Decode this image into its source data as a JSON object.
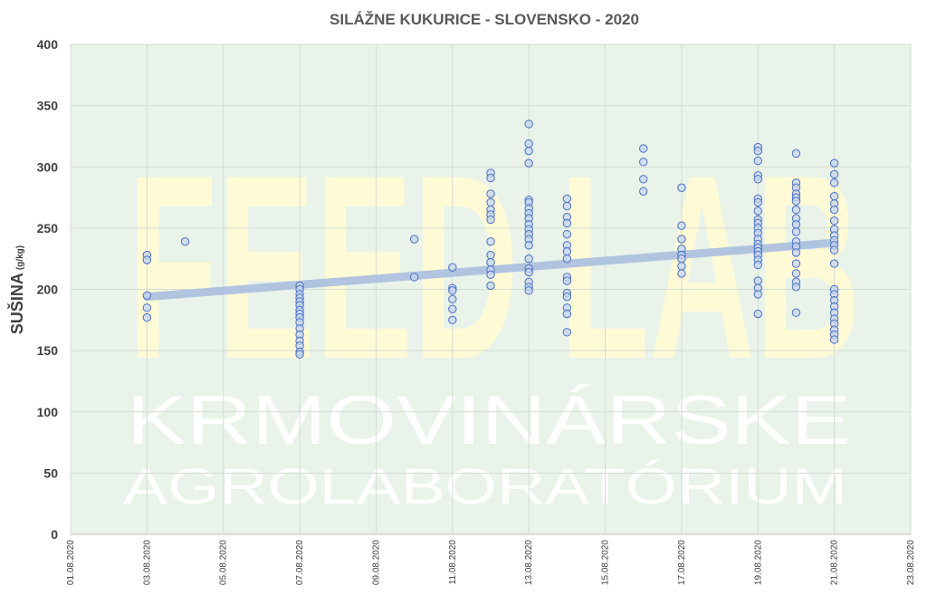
{
  "watermark": {
    "logo_text": "FEED LAB",
    "line1": "KRMOVINÁRSKE",
    "line2": "AGROLABORATÓRIUM"
  },
  "chart_data": {
    "type": "scatter",
    "title": "SILÁŽNE KUKURICE - SLOVENSKO - 2020",
    "ylabel": "SUŠINA",
    "ylabel_unit": "(g/kg)",
    "xlabel": "",
    "ylim": [
      0,
      400
    ],
    "yticks": [
      0,
      50,
      100,
      150,
      200,
      250,
      300,
      350,
      400
    ],
    "xlim": [
      "2020-08-01",
      "2020-08-23"
    ],
    "xtick_labels": [
      "01.08.2020",
      "03.08.2020",
      "05.08.2020",
      "07.08.2020",
      "09.08.2020",
      "11.08.2020",
      "13.08.2020",
      "15.08.2020",
      "17.08.2020",
      "19.08.2020",
      "21.08.2020",
      "23.08.2020"
    ],
    "grid": true,
    "colors": {
      "plot_background": "#e9f3e9",
      "marker_fill": "#c7d6f0",
      "marker_stroke": "#4a6fc0",
      "trendline": "#aabfe0",
      "grid": "#d4dcd4"
    },
    "trendline": {
      "x": [
        "2020-08-03",
        "2020-08-21"
      ],
      "y": [
        194,
        238
      ]
    },
    "points": [
      {
        "x": "2020-08-03",
        "y": 228
      },
      {
        "x": "2020-08-03",
        "y": 224
      },
      {
        "x": "2020-08-03",
        "y": 195
      },
      {
        "x": "2020-08-03",
        "y": 185
      },
      {
        "x": "2020-08-03",
        "y": 177
      },
      {
        "x": "2020-08-04",
        "y": 239
      },
      {
        "x": "2020-08-07",
        "y": 203
      },
      {
        "x": "2020-08-07",
        "y": 200
      },
      {
        "x": "2020-08-07",
        "y": 196
      },
      {
        "x": "2020-08-07",
        "y": 193
      },
      {
        "x": "2020-08-07",
        "y": 190
      },
      {
        "x": "2020-08-07",
        "y": 187
      },
      {
        "x": "2020-08-07",
        "y": 183
      },
      {
        "x": "2020-08-07",
        "y": 180
      },
      {
        "x": "2020-08-07",
        "y": 177
      },
      {
        "x": "2020-08-07",
        "y": 173
      },
      {
        "x": "2020-08-07",
        "y": 168
      },
      {
        "x": "2020-08-07",
        "y": 163
      },
      {
        "x": "2020-08-07",
        "y": 158
      },
      {
        "x": "2020-08-07",
        "y": 154
      },
      {
        "x": "2020-08-07",
        "y": 149
      },
      {
        "x": "2020-08-07",
        "y": 147
      },
      {
        "x": "2020-08-10",
        "y": 241
      },
      {
        "x": "2020-08-10",
        "y": 210
      },
      {
        "x": "2020-08-11",
        "y": 218
      },
      {
        "x": "2020-08-11",
        "y": 201
      },
      {
        "x": "2020-08-11",
        "y": 199
      },
      {
        "x": "2020-08-11",
        "y": 192
      },
      {
        "x": "2020-08-11",
        "y": 184
      },
      {
        "x": "2020-08-11",
        "y": 175
      },
      {
        "x": "2020-08-12",
        "y": 295
      },
      {
        "x": "2020-08-12",
        "y": 291
      },
      {
        "x": "2020-08-12",
        "y": 278
      },
      {
        "x": "2020-08-12",
        "y": 271
      },
      {
        "x": "2020-08-12",
        "y": 265
      },
      {
        "x": "2020-08-12",
        "y": 261
      },
      {
        "x": "2020-08-12",
        "y": 257
      },
      {
        "x": "2020-08-12",
        "y": 239
      },
      {
        "x": "2020-08-12",
        "y": 228
      },
      {
        "x": "2020-08-12",
        "y": 222
      },
      {
        "x": "2020-08-12",
        "y": 216
      },
      {
        "x": "2020-08-12",
        "y": 212
      },
      {
        "x": "2020-08-12",
        "y": 203
      },
      {
        "x": "2020-08-13",
        "y": 335
      },
      {
        "x": "2020-08-13",
        "y": 319
      },
      {
        "x": "2020-08-13",
        "y": 313
      },
      {
        "x": "2020-08-13",
        "y": 303
      },
      {
        "x": "2020-08-13",
        "y": 273
      },
      {
        "x": "2020-08-13",
        "y": 271
      },
      {
        "x": "2020-08-13",
        "y": 266
      },
      {
        "x": "2020-08-13",
        "y": 262
      },
      {
        "x": "2020-08-13",
        "y": 258
      },
      {
        "x": "2020-08-13",
        "y": 253
      },
      {
        "x": "2020-08-13",
        "y": 249
      },
      {
        "x": "2020-08-13",
        "y": 245
      },
      {
        "x": "2020-08-13",
        "y": 241
      },
      {
        "x": "2020-08-13",
        "y": 236
      },
      {
        "x": "2020-08-13",
        "y": 225
      },
      {
        "x": "2020-08-13",
        "y": 217
      },
      {
        "x": "2020-08-13",
        "y": 214
      },
      {
        "x": "2020-08-13",
        "y": 206
      },
      {
        "x": "2020-08-13",
        "y": 202
      },
      {
        "x": "2020-08-13",
        "y": 199
      },
      {
        "x": "2020-08-14",
        "y": 274
      },
      {
        "x": "2020-08-14",
        "y": 268
      },
      {
        "x": "2020-08-14",
        "y": 259
      },
      {
        "x": "2020-08-14",
        "y": 254
      },
      {
        "x": "2020-08-14",
        "y": 245
      },
      {
        "x": "2020-08-14",
        "y": 236
      },
      {
        "x": "2020-08-14",
        "y": 231
      },
      {
        "x": "2020-08-14",
        "y": 225
      },
      {
        "x": "2020-08-14",
        "y": 210
      },
      {
        "x": "2020-08-14",
        "y": 207
      },
      {
        "x": "2020-08-14",
        "y": 197
      },
      {
        "x": "2020-08-14",
        "y": 194
      },
      {
        "x": "2020-08-14",
        "y": 185
      },
      {
        "x": "2020-08-14",
        "y": 180
      },
      {
        "x": "2020-08-14",
        "y": 165
      },
      {
        "x": "2020-08-16",
        "y": 315
      },
      {
        "x": "2020-08-16",
        "y": 304
      },
      {
        "x": "2020-08-16",
        "y": 290
      },
      {
        "x": "2020-08-16",
        "y": 280
      },
      {
        "x": "2020-08-17",
        "y": 283
      },
      {
        "x": "2020-08-17",
        "y": 252
      },
      {
        "x": "2020-08-17",
        "y": 241
      },
      {
        "x": "2020-08-17",
        "y": 233
      },
      {
        "x": "2020-08-17",
        "y": 228
      },
      {
        "x": "2020-08-17",
        "y": 225
      },
      {
        "x": "2020-08-17",
        "y": 219
      },
      {
        "x": "2020-08-17",
        "y": 213
      },
      {
        "x": "2020-08-19",
        "y": 316
      },
      {
        "x": "2020-08-19",
        "y": 313
      },
      {
        "x": "2020-08-19",
        "y": 305
      },
      {
        "x": "2020-08-19",
        "y": 293
      },
      {
        "x": "2020-08-19",
        "y": 290
      },
      {
        "x": "2020-08-19",
        "y": 274
      },
      {
        "x": "2020-08-19",
        "y": 271
      },
      {
        "x": "2020-08-19",
        "y": 264
      },
      {
        "x": "2020-08-19",
        "y": 257
      },
      {
        "x": "2020-08-19",
        "y": 254
      },
      {
        "x": "2020-08-19",
        "y": 250
      },
      {
        "x": "2020-08-19",
        "y": 246
      },
      {
        "x": "2020-08-19",
        "y": 241
      },
      {
        "x": "2020-08-19",
        "y": 237
      },
      {
        "x": "2020-08-19",
        "y": 234
      },
      {
        "x": "2020-08-19",
        "y": 231
      },
      {
        "x": "2020-08-19",
        "y": 228
      },
      {
        "x": "2020-08-19",
        "y": 224
      },
      {
        "x": "2020-08-19",
        "y": 220
      },
      {
        "x": "2020-08-19",
        "y": 207
      },
      {
        "x": "2020-08-19",
        "y": 201
      },
      {
        "x": "2020-08-19",
        "y": 196
      },
      {
        "x": "2020-08-19",
        "y": 180
      },
      {
        "x": "2020-08-20",
        "y": 311
      },
      {
        "x": "2020-08-20",
        "y": 287
      },
      {
        "x": "2020-08-20",
        "y": 283
      },
      {
        "x": "2020-08-20",
        "y": 278
      },
      {
        "x": "2020-08-20",
        "y": 275
      },
      {
        "x": "2020-08-20",
        "y": 272
      },
      {
        "x": "2020-08-20",
        "y": 265
      },
      {
        "x": "2020-08-20",
        "y": 258
      },
      {
        "x": "2020-08-20",
        "y": 253
      },
      {
        "x": "2020-08-20",
        "y": 247
      },
      {
        "x": "2020-08-20",
        "y": 239
      },
      {
        "x": "2020-08-20",
        "y": 235
      },
      {
        "x": "2020-08-20",
        "y": 230
      },
      {
        "x": "2020-08-20",
        "y": 221
      },
      {
        "x": "2020-08-20",
        "y": 213
      },
      {
        "x": "2020-08-20",
        "y": 206
      },
      {
        "x": "2020-08-20",
        "y": 202
      },
      {
        "x": "2020-08-20",
        "y": 181
      },
      {
        "x": "2020-08-21",
        "y": 303
      },
      {
        "x": "2020-08-21",
        "y": 294
      },
      {
        "x": "2020-08-21",
        "y": 287
      },
      {
        "x": "2020-08-21",
        "y": 276
      },
      {
        "x": "2020-08-21",
        "y": 270
      },
      {
        "x": "2020-08-21",
        "y": 265
      },
      {
        "x": "2020-08-21",
        "y": 256
      },
      {
        "x": "2020-08-21",
        "y": 249
      },
      {
        "x": "2020-08-21",
        "y": 244
      },
      {
        "x": "2020-08-21",
        "y": 240
      },
      {
        "x": "2020-08-21",
        "y": 236
      },
      {
        "x": "2020-08-21",
        "y": 232
      },
      {
        "x": "2020-08-21",
        "y": 221
      },
      {
        "x": "2020-08-21",
        "y": 200
      },
      {
        "x": "2020-08-21",
        "y": 196
      },
      {
        "x": "2020-08-21",
        "y": 191
      },
      {
        "x": "2020-08-21",
        "y": 186
      },
      {
        "x": "2020-08-21",
        "y": 181
      },
      {
        "x": "2020-08-21",
        "y": 176
      },
      {
        "x": "2020-08-21",
        "y": 172
      },
      {
        "x": "2020-08-21",
        "y": 167
      },
      {
        "x": "2020-08-21",
        "y": 163
      },
      {
        "x": "2020-08-21",
        "y": 159
      }
    ]
  }
}
